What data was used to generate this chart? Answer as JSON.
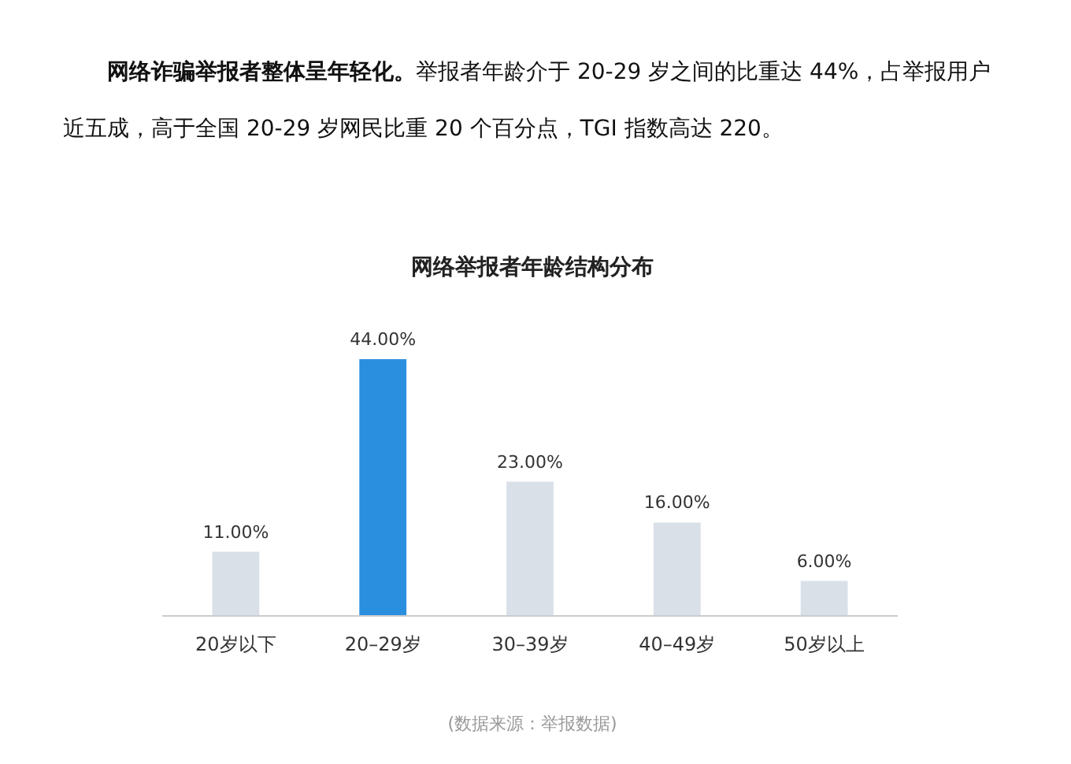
{
  "chart_data": {
    "type": "bar",
    "title": "网络举报者年龄结构分布",
    "annotations": [
      "网络诈骗举报者整体呈年轻化。",
      "举报者年龄介于 20-29 岁之间的比重达 44%，占举报用户近五成，高于全国 20-29 岁网民比重 20 个百分点，TGI 指数高达 220。",
      "(数据来源：举报数据)"
    ],
    "categories": [
      "20岁以下",
      "20–29岁",
      "30–39岁",
      "40–49岁",
      "50岁以上"
    ],
    "values": [
      11,
      44,
      23,
      16,
      6
    ],
    "colors": [
      "#d9e0e8",
      "#2b8fdf",
      "#d9e0e8",
      "#d9e0e8",
      "#d9e0e8"
    ],
    "value_labels": [
      "11.00%",
      "44.00%",
      "23.00%",
      "16.00%",
      "6.00%"
    ]
  }
}
